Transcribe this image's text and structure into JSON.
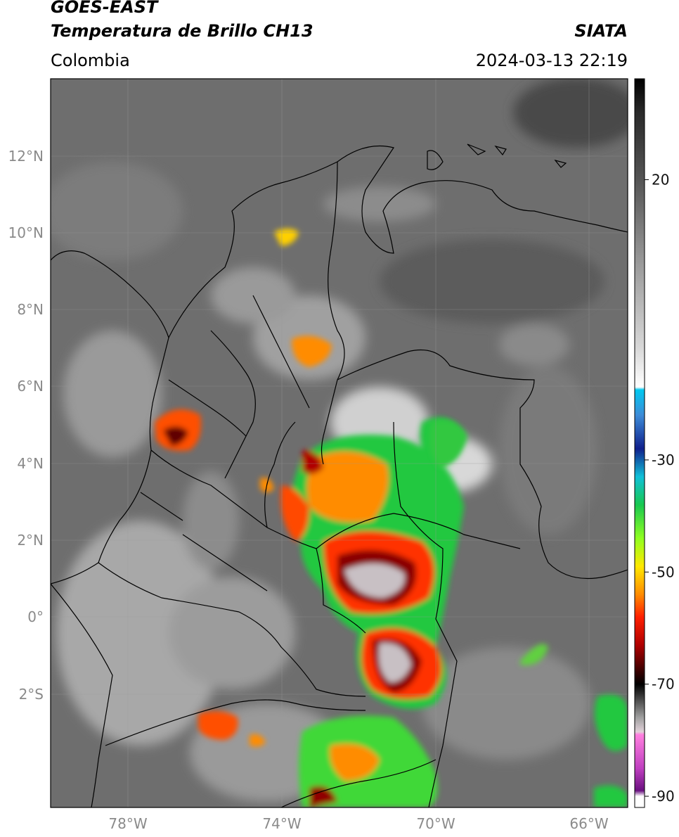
{
  "header": {
    "satellite": "GOES-EAST",
    "product": "Temperatura de Brillo CH13",
    "region": "Colombia",
    "source": "SIATA",
    "datetime": "2024-03-13 22:19"
  },
  "map": {
    "lat_labels": [
      "12°N",
      "10°N",
      "8°N",
      "6°N",
      "4°N",
      "2°N",
      "0°",
      "2°S"
    ],
    "lon_labels": [
      "78°W",
      "74°W",
      "70°W",
      "66°W"
    ],
    "background_color": "#6e6e6e",
    "border_color": "#000000"
  },
  "colorbar": {
    "tick_labels": [
      "20",
      "-30",
      "-50",
      "-70",
      "-90"
    ],
    "range": [
      -92,
      38
    ],
    "stops": [
      {
        "t": 38,
        "c": "#000000"
      },
      {
        "t": 32,
        "c": "#2a2a2a"
      },
      {
        "t": 20,
        "c": "#555555"
      },
      {
        "t": 5,
        "c": "#9a9a9a"
      },
      {
        "t": -10,
        "c": "#d8d8d8"
      },
      {
        "t": -17,
        "c": "#ffffff"
      },
      {
        "t": -17.5,
        "c": "#00c8f0"
      },
      {
        "t": -22,
        "c": "#3d8cd8"
      },
      {
        "t": -28,
        "c": "#10208c"
      },
      {
        "t": -33,
        "c": "#10c0d8"
      },
      {
        "t": -38,
        "c": "#18c850"
      },
      {
        "t": -44,
        "c": "#90ff20"
      },
      {
        "t": -49,
        "c": "#ffe800"
      },
      {
        "t": -54,
        "c": "#ff8c00"
      },
      {
        "t": -58,
        "c": "#ff2000"
      },
      {
        "t": -63,
        "c": "#b00000"
      },
      {
        "t": -68,
        "c": "#300000"
      },
      {
        "t": -70,
        "c": "#000000"
      },
      {
        "t": -73,
        "c": "#505050"
      },
      {
        "t": -76,
        "c": "#a0a0a0"
      },
      {
        "t": -78.5,
        "c": "#e0d0d8"
      },
      {
        "t": -79,
        "c": "#ff80e0"
      },
      {
        "t": -85,
        "c": "#c040c0"
      },
      {
        "t": -89,
        "c": "#6a1080"
      },
      {
        "t": -90,
        "c": "#ffffff"
      },
      {
        "t": -92,
        "c": "#ffffff"
      }
    ]
  }
}
